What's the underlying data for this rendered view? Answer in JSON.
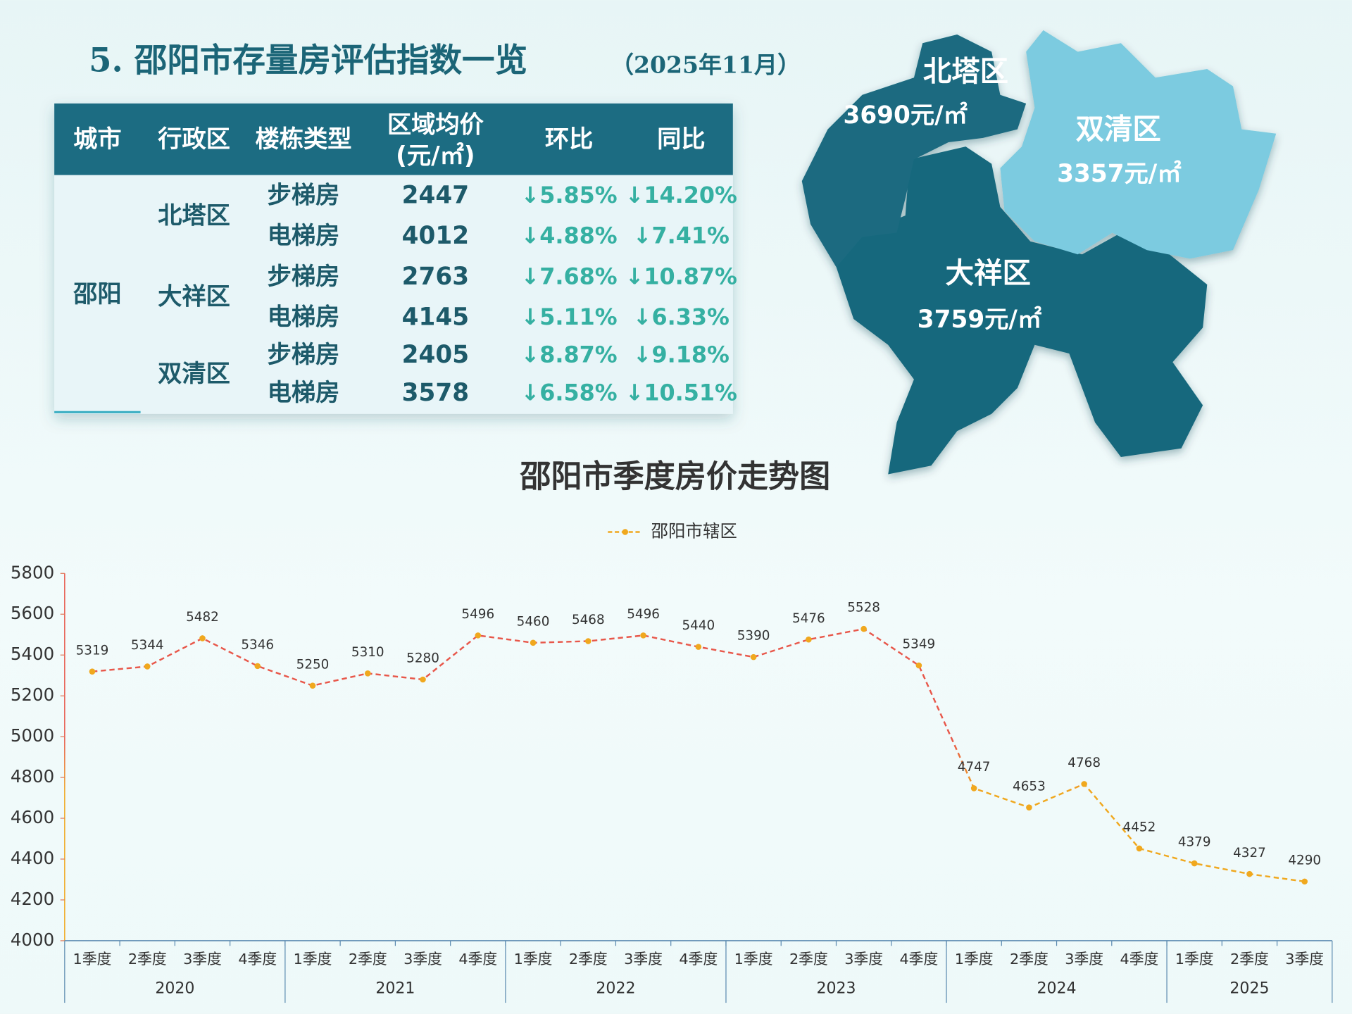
{
  "header": {
    "title": "5. 邵阳市存量房评估指数一览",
    "date": "（2025年11月）"
  },
  "table": {
    "header": [
      "城市",
      "行政区",
      "楼栋类型",
      [
        "区域均价",
        "(元/㎡)"
      ],
      "环比",
      "同比"
    ],
    "city": "邵阳",
    "districts": [
      {
        "name": "北塔区",
        "rows": [
          [
            "步梯房",
            2447,
            "↓5.85%",
            "↓14.20%"
          ],
          [
            "电梯房",
            4012,
            "↓4.88%",
            "↓7.41%"
          ]
        ]
      },
      {
        "name": "大祥区",
        "rows": [
          [
            "步梯房",
            2763,
            "↓7.68%",
            "↓10.87%"
          ],
          [
            "电梯房",
            4145,
            "↓5.11%",
            "↓6.33%"
          ]
        ]
      },
      {
        "name": "双清区",
        "rows": [
          [
            "步梯房",
            2405,
            "↓8.87%",
            "↓9.18%"
          ],
          [
            "电梯房",
            3578,
            "↓6.58%",
            "↓10.51%"
          ]
        ]
      }
    ]
  },
  "map": {
    "regions": [
      {
        "name": "北塔区",
        "price": "3690元/㎡"
      },
      {
        "name": "双清区",
        "price": "3357元/㎡"
      },
      {
        "name": "大祥区",
        "price": "3759元/㎡"
      }
    ]
  },
  "chart_data": {
    "type": "line",
    "title": "邵阳市季度房价走势图",
    "categories": [
      "1季度",
      "2季度",
      "3季度",
      "4季度",
      "1季度",
      "2季度",
      "3季度",
      "4季度",
      "1季度",
      "2季度",
      "3季度",
      "4季度",
      "1季度",
      "2季度",
      "3季度",
      "4季度",
      "1季度",
      "2季度",
      "3季度",
      "4季度",
      "1季度",
      "2季度",
      "3季度"
    ],
    "x_groups": [
      "2020",
      "2021",
      "2022",
      "2023",
      "2024",
      "2025"
    ],
    "series": [
      {
        "name": "邵阳市辖区",
        "color": "#f0a81e",
        "line_gradient": [
          "#e8574a",
          "#f0a81e"
        ],
        "values": [
          5319,
          5344,
          5482,
          5346,
          5250,
          5310,
          5280,
          5496,
          5460,
          5468,
          5496,
          5440,
          5390,
          5476,
          5528,
          5349,
          4747,
          4653,
          4768,
          4452,
          4379,
          4327,
          4290
        ]
      }
    ],
    "ylim": [
      4000,
      5800
    ],
    "yticks": [
      4000,
      4200,
      4400,
      4600,
      4800,
      5000,
      5200,
      5400,
      5600,
      5800
    ],
    "grid": false
  }
}
